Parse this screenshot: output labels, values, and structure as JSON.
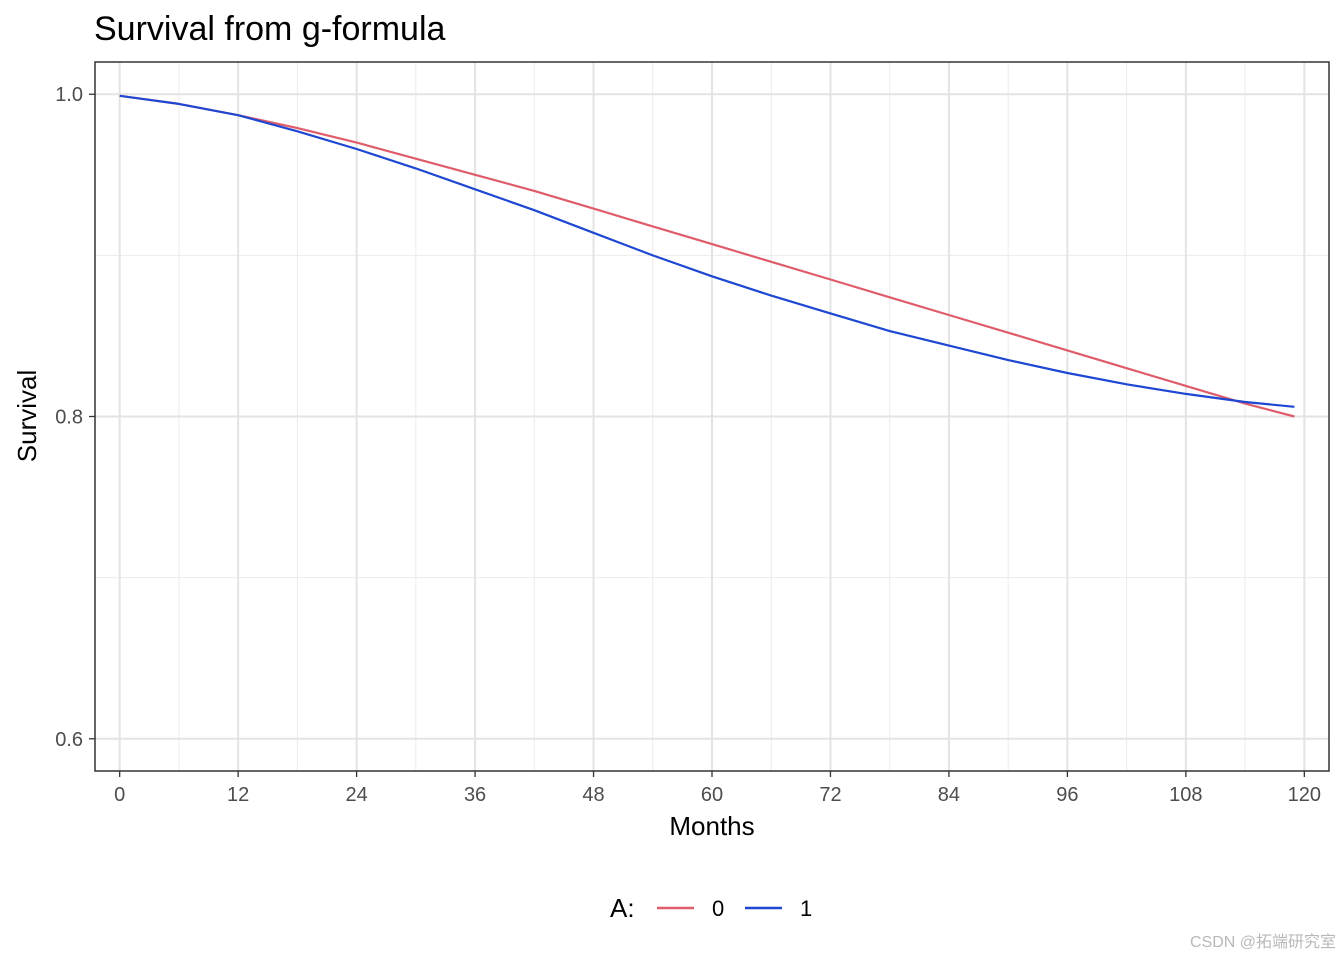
{
  "chart_data": {
    "type": "line",
    "title": "Survival from g-formula",
    "xlabel": "Months",
    "ylabel": "Survival",
    "xlim": [
      -2.5,
      122.5
    ],
    "ylim": [
      0.58,
      1.02
    ],
    "x_ticks": [
      0,
      12,
      24,
      36,
      48,
      60,
      72,
      84,
      96,
      108,
      120
    ],
    "x_minor_ticks": [
      6,
      18,
      30,
      42,
      54,
      66,
      78,
      90,
      102,
      114
    ],
    "y_ticks": [
      0.6,
      0.8,
      1.0
    ],
    "y_tick_labels": [
      "0.6",
      "0.8",
      "1.0"
    ],
    "y_minor_ticks": [
      0.7,
      0.9
    ],
    "grid": true,
    "legend": {
      "title": "A:",
      "position": "bottom"
    },
    "series": [
      {
        "name": "0",
        "color": "#DF5C6A",
        "x": [
          0,
          6,
          12,
          18,
          24,
          30,
          36,
          42,
          48,
          54,
          60,
          66,
          72,
          78,
          84,
          90,
          96,
          102,
          108,
          114,
          119
        ],
        "y": [
          0.999,
          0.994,
          0.987,
          0.979,
          0.97,
          0.96,
          0.95,
          0.94,
          0.929,
          0.918,
          0.907,
          0.896,
          0.885,
          0.874,
          0.863,
          0.852,
          0.841,
          0.83,
          0.819,
          0.808,
          0.8
        ]
      },
      {
        "name": "1",
        "color": "#1E47D2",
        "x": [
          0,
          6,
          12,
          18,
          24,
          30,
          36,
          42,
          48,
          54,
          60,
          66,
          72,
          78,
          84,
          90,
          96,
          102,
          108,
          114,
          119
        ],
        "y": [
          0.999,
          0.994,
          0.987,
          0.977,
          0.966,
          0.954,
          0.941,
          0.928,
          0.914,
          0.9,
          0.887,
          0.875,
          0.864,
          0.853,
          0.844,
          0.835,
          0.827,
          0.82,
          0.814,
          0.809,
          0.806
        ]
      }
    ]
  },
  "watermark": "CSDN @拓端研究室"
}
